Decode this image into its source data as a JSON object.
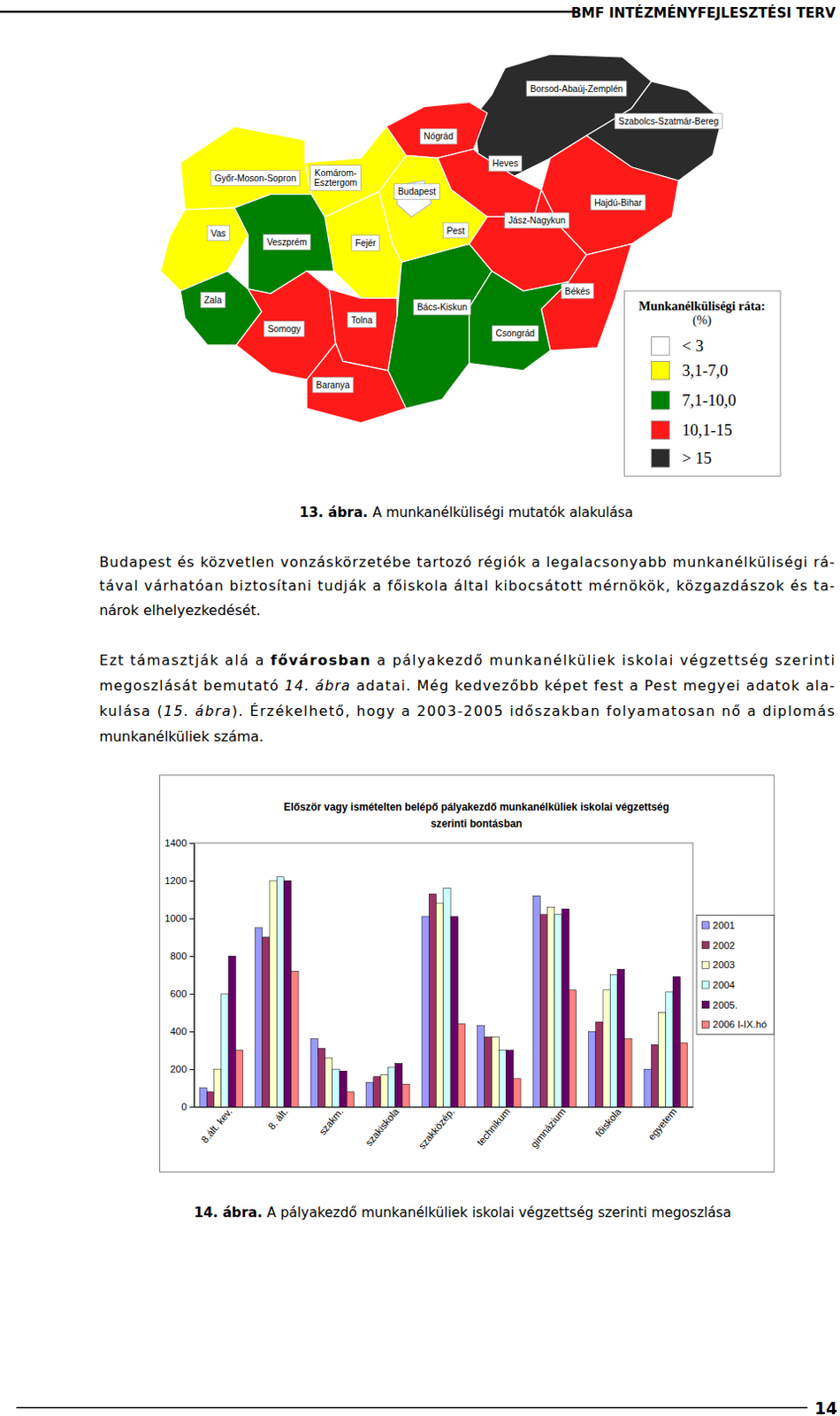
{
  "header": {
    "title": "BMF INTÉZMÉNYFEJLESZTÉSI TERV"
  },
  "map": {
    "legend": {
      "title": "Munkanélküliségi ráta:",
      "unit": "(%)",
      "classes": [
        {
          "label": "< 3",
          "color": "#ffffff"
        },
        {
          "label": "3,1-7,0",
          "color": "#ffff00"
        },
        {
          "label": "7,1-10,0",
          "color": "#008000"
        },
        {
          "label": "10,1-15",
          "color": "#ff1a1a"
        },
        {
          "label": "> 15",
          "color": "#2b2b2b"
        }
      ]
    },
    "regions": [
      {
        "label": [
          "Borsod-Abaúj-Zemplén"
        ],
        "class": "> 15"
      },
      {
        "label": [
          "Szabolcs-Szatmár-Bereg"
        ],
        "class": "> 15"
      },
      {
        "label": [
          "Nógrád"
        ],
        "class": "10,1-15"
      },
      {
        "label": [
          "Heves"
        ],
        "class": "10,1-15"
      },
      {
        "label": [
          "Hajdú-Bihar"
        ],
        "class": "10,1-15"
      },
      {
        "label": [
          "Jász-Nagykun"
        ],
        "class": "10,1-15"
      },
      {
        "label": [
          "Békés"
        ],
        "class": "10,1-15"
      },
      {
        "label": [
          "Csongrád"
        ],
        "class": "7,1-10,0"
      },
      {
        "label": [
          "Bács-Kiskun"
        ],
        "class": "7,1-10,0"
      },
      {
        "label": [
          "Pest"
        ],
        "class": "3,1-7,0"
      },
      {
        "label": [
          "Budapest"
        ],
        "class": "< 3"
      },
      {
        "label": [
          "Fejér"
        ],
        "class": "3,1-7,0"
      },
      {
        "label": [
          "Komárom-",
          "Esztergom"
        ],
        "class": "3,1-7,0"
      },
      {
        "label": [
          "Győr-Moson-Sopron"
        ],
        "class": "3,1-7,0"
      },
      {
        "label": [
          "Vas"
        ],
        "class": "3,1-7,0"
      },
      {
        "label": [
          "Veszprém"
        ],
        "class": "7,1-10,0"
      },
      {
        "label": [
          "Zala"
        ],
        "class": "7,1-10,0"
      },
      {
        "label": [
          "Somogy"
        ],
        "class": "10,1-15"
      },
      {
        "label": [
          "Tolna"
        ],
        "class": "10,1-15"
      },
      {
        "label": [
          "Baranya"
        ],
        "class": "10,1-15"
      }
    ]
  },
  "figure13_caption": {
    "label": "13. ábra.",
    "text": "A munkanélküliségi mutatók alakulása"
  },
  "paragraphs": [
    [
      [
        {
          "text": "Budapest és közvetlen vonzáskörzetébe tartozó régiók a legalacsonyabb munkanélküliségi rá-"
        }
      ],
      [
        {
          "text": "tával várhatóan biztosítani tudják a főiskola által kibocsátott mérnökök, közgazdászok és ta-"
        }
      ],
      [
        {
          "text": "nárok elhelyezkedését."
        }
      ]
    ],
    [
      [
        {
          "text": "Ezt támasztják alá a "
        },
        {
          "text": "fővárosban",
          "weight": "bold"
        },
        {
          "text": " a pályakezdő munkanélküliek iskolai végzettség szerinti"
        }
      ],
      [
        {
          "text": "megoszlását bemutató "
        },
        {
          "text": "14. ábra",
          "style": "italic"
        },
        {
          "text": " adatai. Még kedvezőbb képet fest a Pest megyei adatok ala-"
        }
      ],
      [
        {
          "text": "kulása ("
        },
        {
          "text": "15. ábra",
          "style": "italic"
        },
        {
          "text": "). Érzékelhető, hogy a 2003-2005 időszakban folyamatosan nő a diplomás"
        }
      ],
      [
        {
          "text": "munkanélküliek száma."
        }
      ]
    ]
  ],
  "chart_data": {
    "type": "bar",
    "title": [
      "Először vagy ismételten belépő pályakezdő munkanélküliek iskolai végzettség",
      "szerinti bontásban"
    ],
    "categories": [
      "8.ált. kev.",
      "8. ált.",
      "szakm.",
      "szakiskola",
      "szakközép.",
      "technikum",
      "gimnázium",
      "főiskola",
      "egyetem"
    ],
    "series": [
      {
        "name": "2001",
        "color": "#9999ff",
        "values": [
          100,
          950,
          360,
          130,
          1010,
          430,
          1120,
          400,
          200
        ]
      },
      {
        "name": "2002",
        "color": "#993366",
        "values": [
          80,
          900,
          310,
          160,
          1130,
          370,
          1020,
          450,
          330
        ]
      },
      {
        "name": "2003",
        "color": "#ffffcc",
        "values": [
          200,
          1200,
          260,
          170,
          1080,
          370,
          1060,
          620,
          500
        ]
      },
      {
        "name": "2004",
        "color": "#ccffff",
        "values": [
          600,
          1220,
          200,
          210,
          1160,
          300,
          1020,
          700,
          610
        ]
      },
      {
        "name": "2005.",
        "color": "#660066",
        "values": [
          800,
          1200,
          190,
          230,
          1010,
          300,
          1050,
          730,
          690
        ]
      },
      {
        "name": "2006 I-IX.hó",
        "color": "#ff8080",
        "values": [
          300,
          720,
          80,
          120,
          440,
          150,
          620,
          360,
          340
        ]
      }
    ],
    "ylim": [
      0,
      1400
    ],
    "yticks": [
      0,
      200,
      400,
      600,
      800,
      1000,
      1200,
      1400
    ],
    "grid": false,
    "legend": "right"
  },
  "figure14_caption": {
    "label": "14. ábra.",
    "text": "A pályakezdő munkanélküliek iskolai végzettség szerinti megoszlása"
  },
  "page_number": "14"
}
